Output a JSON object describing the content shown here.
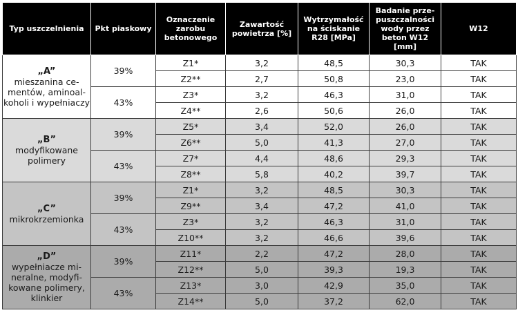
{
  "headers": {
    "type": "Typ uszczelnienia",
    "sand": "Pkt piaskowy",
    "mix": "Oznaczenie zarobu betonowego",
    "air": "Zawartość powietrza [%]",
    "strength": "Wytrzymałość na ściskanie R28 [MPa]",
    "permeability": "Badanie prze-puszczalności wody przez beton W12 [mm]",
    "w12": "W12"
  },
  "groups": [
    {
      "letter": "„A”",
      "description": "mieszanina ce-mentów, aminoal-koholi i wypełniaczy",
      "sand_points": [
        {
          "value": "39%",
          "rows": [
            {
              "mix": "Z1*",
              "air": "3,2",
              "strength": "48,5",
              "permeability": "30,3",
              "w12": "TAK"
            },
            {
              "mix": "Z2**",
              "air": "2,7",
              "strength": "50,8",
              "permeability": "23,0",
              "w12": "TAK"
            }
          ]
        },
        {
          "value": "43%",
          "rows": [
            {
              "mix": "Z3*",
              "air": "3,2",
              "strength": "46,3",
              "permeability": "31,0",
              "w12": "TAK"
            },
            {
              "mix": "Z4**",
              "air": "2,6",
              "strength": "50,6",
              "permeability": "26,0",
              "w12": "TAK"
            }
          ]
        }
      ]
    },
    {
      "letter": "„B”",
      "description": "modyfikowane polimery",
      "sand_points": [
        {
          "value": "39%",
          "rows": [
            {
              "mix": "Z5*",
              "air": "3,4",
              "strength": "52,0",
              "permeability": "26,0",
              "w12": "TAK"
            },
            {
              "mix": "Z6**",
              "air": "5,0",
              "strength": "41,3",
              "permeability": "27,0",
              "w12": "TAK"
            }
          ]
        },
        {
          "value": "43%",
          "rows": [
            {
              "mix": "Z7*",
              "air": "4,4",
              "strength": "48,6",
              "permeability": "29,3",
              "w12": "TAK"
            },
            {
              "mix": "Z8**",
              "air": "5,8",
              "strength": "40,2",
              "permeability": "39,7",
              "w12": "TAK"
            }
          ]
        }
      ]
    },
    {
      "letter": "„C”",
      "description": "mikrokrzemionka",
      "sand_points": [
        {
          "value": "39%",
          "rows": [
            {
              "mix": "Z1*",
              "air": "3,2",
              "strength": "48,5",
              "permeability": "30,3",
              "w12": "TAK"
            },
            {
              "mix": "Z9**",
              "air": "3,4",
              "strength": "47,2",
              "permeability": "41,0",
              "w12": "TAK"
            }
          ]
        },
        {
          "value": "43%",
          "rows": [
            {
              "mix": "Z3*",
              "air": "3,2",
              "strength": "46,3",
              "permeability": "31,0",
              "w12": "TAK"
            },
            {
              "mix": "Z10**",
              "air": "3,2",
              "strength": "46,6",
              "permeability": "39,6",
              "w12": "TAK"
            }
          ]
        }
      ]
    },
    {
      "letter": "„D”",
      "description": "wypełniacze mi-neralne, modyfi-kowane polimery, klinkier",
      "sand_points": [
        {
          "value": "39%",
          "rows": [
            {
              "mix": "Z11*",
              "air": "2,2",
              "strength": "47,2",
              "permeability": "28,0",
              "w12": "TAK"
            },
            {
              "mix": "Z12**",
              "air": "5,0",
              "strength": "39,3",
              "permeability": "19,3",
              "w12": "TAK"
            }
          ]
        },
        {
          "value": "43%",
          "rows": [
            {
              "mix": "Z13*",
              "air": "3,0",
              "strength": "42,9",
              "permeability": "35,0",
              "w12": "TAK"
            },
            {
              "mix": "Z14**",
              "air": "5,0",
              "strength": "37,2",
              "permeability": "62,0",
              "w12": "TAK"
            }
          ]
        }
      ]
    }
  ]
}
